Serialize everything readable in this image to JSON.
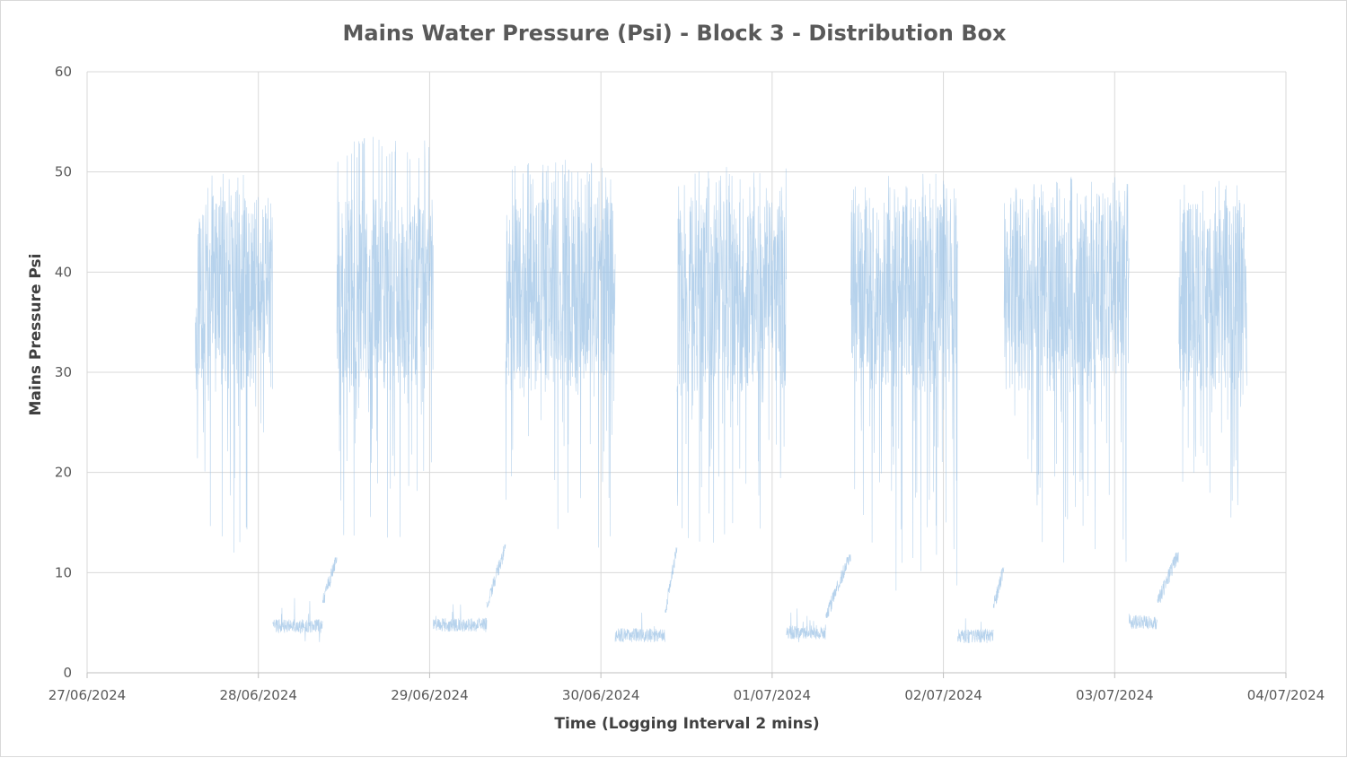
{
  "chart_data": {
    "type": "line",
    "title": "Mains Water Pressure (Psi) - Block 3 - Distribution Box",
    "xlabel": "Time  (Logging Interval 2 mins)",
    "ylabel": "Mains Pressure Psi",
    "ylim": [
      0,
      60
    ],
    "yticks": [
      "0",
      "10",
      "20",
      "30",
      "40",
      "50",
      "60"
    ],
    "xlim": [
      "2024-06-27",
      "2024-07-04"
    ],
    "xticks": [
      "27/06/2024",
      "28/06/2024",
      "29/06/2024",
      "30/06/2024",
      "01/07/2024",
      "02/07/2024",
      "03/07/2024",
      "04/07/2024"
    ],
    "grid": true,
    "legend": "none",
    "series_color": "#9dc3e6",
    "series": [
      {
        "x_start": "2024-06-27 15:10",
        "x_end": "2024-07-03 18:30",
        "logging_interval_minutes": 2,
        "segments": [
          {
            "start": "2024-06-27 15:10",
            "end": "2024-06-28 02:00",
            "level": "high",
            "ymin": 12,
            "ymax": 49.8
          },
          {
            "start": "2024-06-28 02:00",
            "end": "2024-06-28 09:00",
            "level": "low",
            "ymin": 3,
            "ymax": 7.5
          },
          {
            "start": "2024-06-28 09:00",
            "end": "2024-06-28 11:00",
            "level": "rise",
            "ymin": 7,
            "ymax": 11.5
          },
          {
            "start": "2024-06-28 11:00",
            "end": "2024-06-29 00:30",
            "level": "high",
            "ymin": 13.5,
            "ymax": 53.5
          },
          {
            "start": "2024-06-29 00:30",
            "end": "2024-06-29 08:00",
            "level": "low",
            "ymin": 3.8,
            "ymax": 7
          },
          {
            "start": "2024-06-29 08:00",
            "end": "2024-06-29 10:40",
            "level": "rise",
            "ymin": 6.5,
            "ymax": 12.8
          },
          {
            "start": "2024-06-29 10:40",
            "end": "2024-06-30 02:00",
            "level": "high",
            "ymin": 12.5,
            "ymax": 51.2
          },
          {
            "start": "2024-06-30 02:00",
            "end": "2024-06-30 09:00",
            "level": "low",
            "ymin": 2.7,
            "ymax": 6
          },
          {
            "start": "2024-06-30 09:00",
            "end": "2024-06-30 10:40",
            "level": "rise",
            "ymin": 6,
            "ymax": 12.5
          },
          {
            "start": "2024-06-30 10:40",
            "end": "2024-07-01 02:00",
            "level": "high",
            "ymin": 13,
            "ymax": 50.5
          },
          {
            "start": "2024-07-01 02:00",
            "end": "2024-07-01 07:30",
            "level": "low",
            "ymin": 2.8,
            "ymax": 6.5
          },
          {
            "start": "2024-07-01 07:30",
            "end": "2024-07-01 11:00",
            "level": "rise",
            "ymin": 5.5,
            "ymax": 11.8
          },
          {
            "start": "2024-07-01 11:00",
            "end": "2024-07-02 02:00",
            "level": "high",
            "ymin": 8.2,
            "ymax": 49.8
          },
          {
            "start": "2024-07-02 02:00",
            "end": "2024-07-02 07:00",
            "level": "low",
            "ymin": 2.5,
            "ymax": 6
          },
          {
            "start": "2024-07-02 07:00",
            "end": "2024-07-02 08:30",
            "level": "rise",
            "ymin": 6.5,
            "ymax": 10.5
          },
          {
            "start": "2024-07-02 08:30",
            "end": "2024-07-03 02:00",
            "level": "high",
            "ymin": 11,
            "ymax": 49.5
          },
          {
            "start": "2024-07-03 02:00",
            "end": "2024-07-03 06:00",
            "level": "low",
            "ymin": 4.3,
            "ymax": 7
          },
          {
            "start": "2024-07-03 06:00",
            "end": "2024-07-03 09:00",
            "level": "rise",
            "ymin": 7,
            "ymax": 12
          },
          {
            "start": "2024-07-03 09:00",
            "end": "2024-07-03 18:30",
            "level": "high",
            "ymin": 15.5,
            "ymax": 49.1
          }
        ]
      }
    ]
  }
}
